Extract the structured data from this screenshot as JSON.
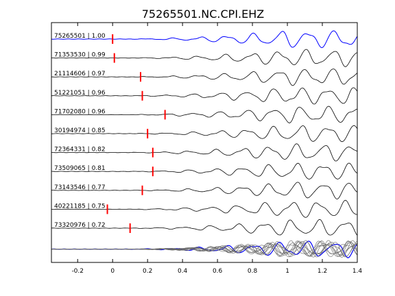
{
  "chart_data": {
    "type": "line",
    "title": "75265501.NC.CPI.EHZ",
    "xlim": [
      -0.35,
      1.4
    ],
    "x_ticks": [
      "-0.2",
      "0",
      "0.2",
      "0.4",
      "0.6",
      "0.8",
      "1",
      "1.2",
      "1.4"
    ],
    "x_tick_values": [
      -0.2,
      0,
      0.2,
      0.4,
      0.6,
      0.8,
      1.0,
      1.2,
      1.4
    ],
    "grid": false,
    "trace_color": "#000000",
    "reference_color": "#0000ff",
    "pick_color": "#ff0000",
    "traces": [
      {
        "label": "75265501 | 1.00",
        "pick": 0.0,
        "reference": true
      },
      {
        "label": "71353530 | 0.99",
        "pick": 0.01
      },
      {
        "label": "21114606 | 0.97",
        "pick": 0.16
      },
      {
        "label": "51221051 | 0.96",
        "pick": 0.17
      },
      {
        "label": "71702080 | 0.96",
        "pick": 0.3
      },
      {
        "label": "30194974 | 0.85",
        "pick": 0.2
      },
      {
        "label": "72364331 | 0.82",
        "pick": 0.23
      },
      {
        "label": "73509065 | 0.81",
        "pick": 0.23
      },
      {
        "label": "73143546 | 0.77",
        "pick": 0.17
      },
      {
        "label": "40221185 | 0.75",
        "pick": -0.03
      },
      {
        "label": "73320976 | 0.72",
        "pick": 0.1
      }
    ],
    "stack": {
      "label": "",
      "overlay": true
    }
  }
}
